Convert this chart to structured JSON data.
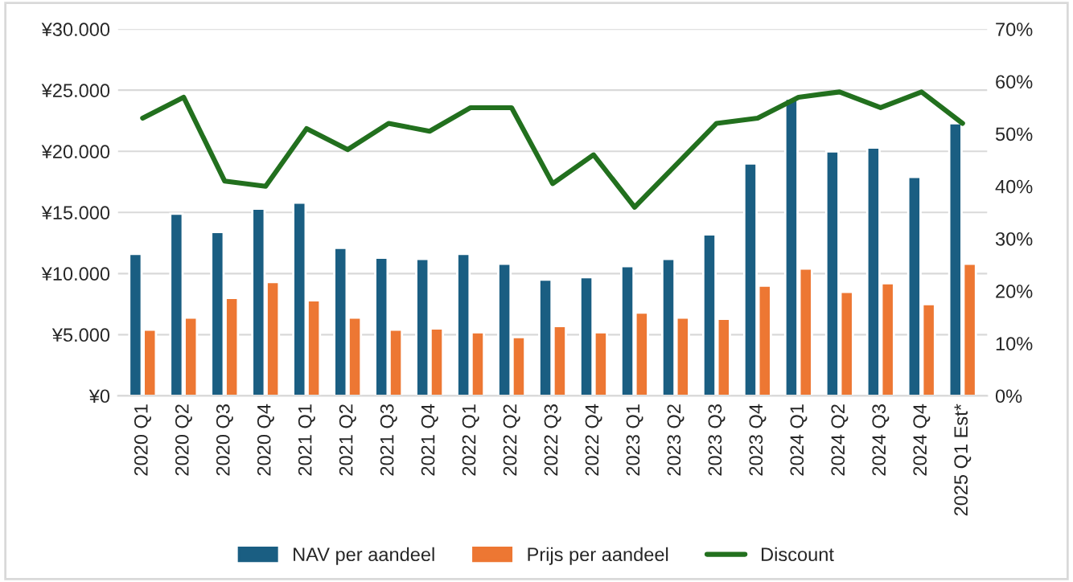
{
  "chart_data": {
    "type": "bar",
    "categories": [
      "2020 Q1",
      "2020 Q2",
      "2020 Q3",
      "2020 Q4",
      "2021 Q1",
      "2021 Q2",
      "2021 Q3",
      "2021 Q4",
      "2022 Q1",
      "2022 Q2",
      "2022 Q3",
      "2022 Q4",
      "2023 Q1",
      "2023 Q2",
      "2023 Q3",
      "2023 Q4",
      "2024 Q1",
      "2024 Q2",
      "2024 Q3",
      "2024 Q4",
      "2025 Q1 Est*"
    ],
    "series": [
      {
        "name": "NAV per aandeel",
        "color": "#1a5e82",
        "values": [
          11600,
          14900,
          13400,
          15300,
          15800,
          12100,
          11300,
          11200,
          11600,
          10800,
          9500,
          9700,
          10600,
          11200,
          13200,
          19000,
          24300,
          20000,
          20300,
          17900,
          22300
        ]
      },
      {
        "name": "Prijs per aandeel",
        "color": "#ed7733",
        "values": [
          5400,
          6400,
          8000,
          9300,
          7800,
          6400,
          5400,
          5500,
          5200,
          4800,
          5700,
          5200,
          6800,
          6400,
          6300,
          9000,
          10400,
          8500,
          9200,
          7500,
          10800
        ]
      },
      {
        "name": "Discount",
        "type": "line",
        "axis": "y2",
        "color": "#22701e",
        "values": [
          53,
          57,
          41,
          40,
          51,
          47,
          52,
          50.5,
          55,
          55,
          40.5,
          46,
          36,
          44,
          52,
          53,
          57,
          58,
          55,
          58,
          52
        ]
      }
    ],
    "ylim": [
      0,
      30000
    ],
    "yticks": [
      {
        "value": 0,
        "label": "¥0"
      },
      {
        "value": 5000,
        "label": "¥5.000"
      },
      {
        "value": 10000,
        "label": "¥10.000"
      },
      {
        "value": 15000,
        "label": "¥15.000"
      },
      {
        "value": 20000,
        "label": "¥20.000"
      },
      {
        "value": 25000,
        "label": "¥25.000"
      },
      {
        "value": 30000,
        "label": "¥30.000"
      }
    ],
    "y2lim": [
      0,
      70
    ],
    "y2ticks": [
      {
        "value": 0,
        "label": "0%"
      },
      {
        "value": 10,
        "label": "10%"
      },
      {
        "value": 20,
        "label": "20%"
      },
      {
        "value": 30,
        "label": "30%"
      },
      {
        "value": 40,
        "label": "40%"
      },
      {
        "value": 50,
        "label": "50%"
      },
      {
        "value": 60,
        "label": "60%"
      },
      {
        "value": 70,
        "label": "70%"
      }
    ],
    "grid": "y",
    "legend": "bottom",
    "line_style": "solid",
    "marker": "none"
  }
}
